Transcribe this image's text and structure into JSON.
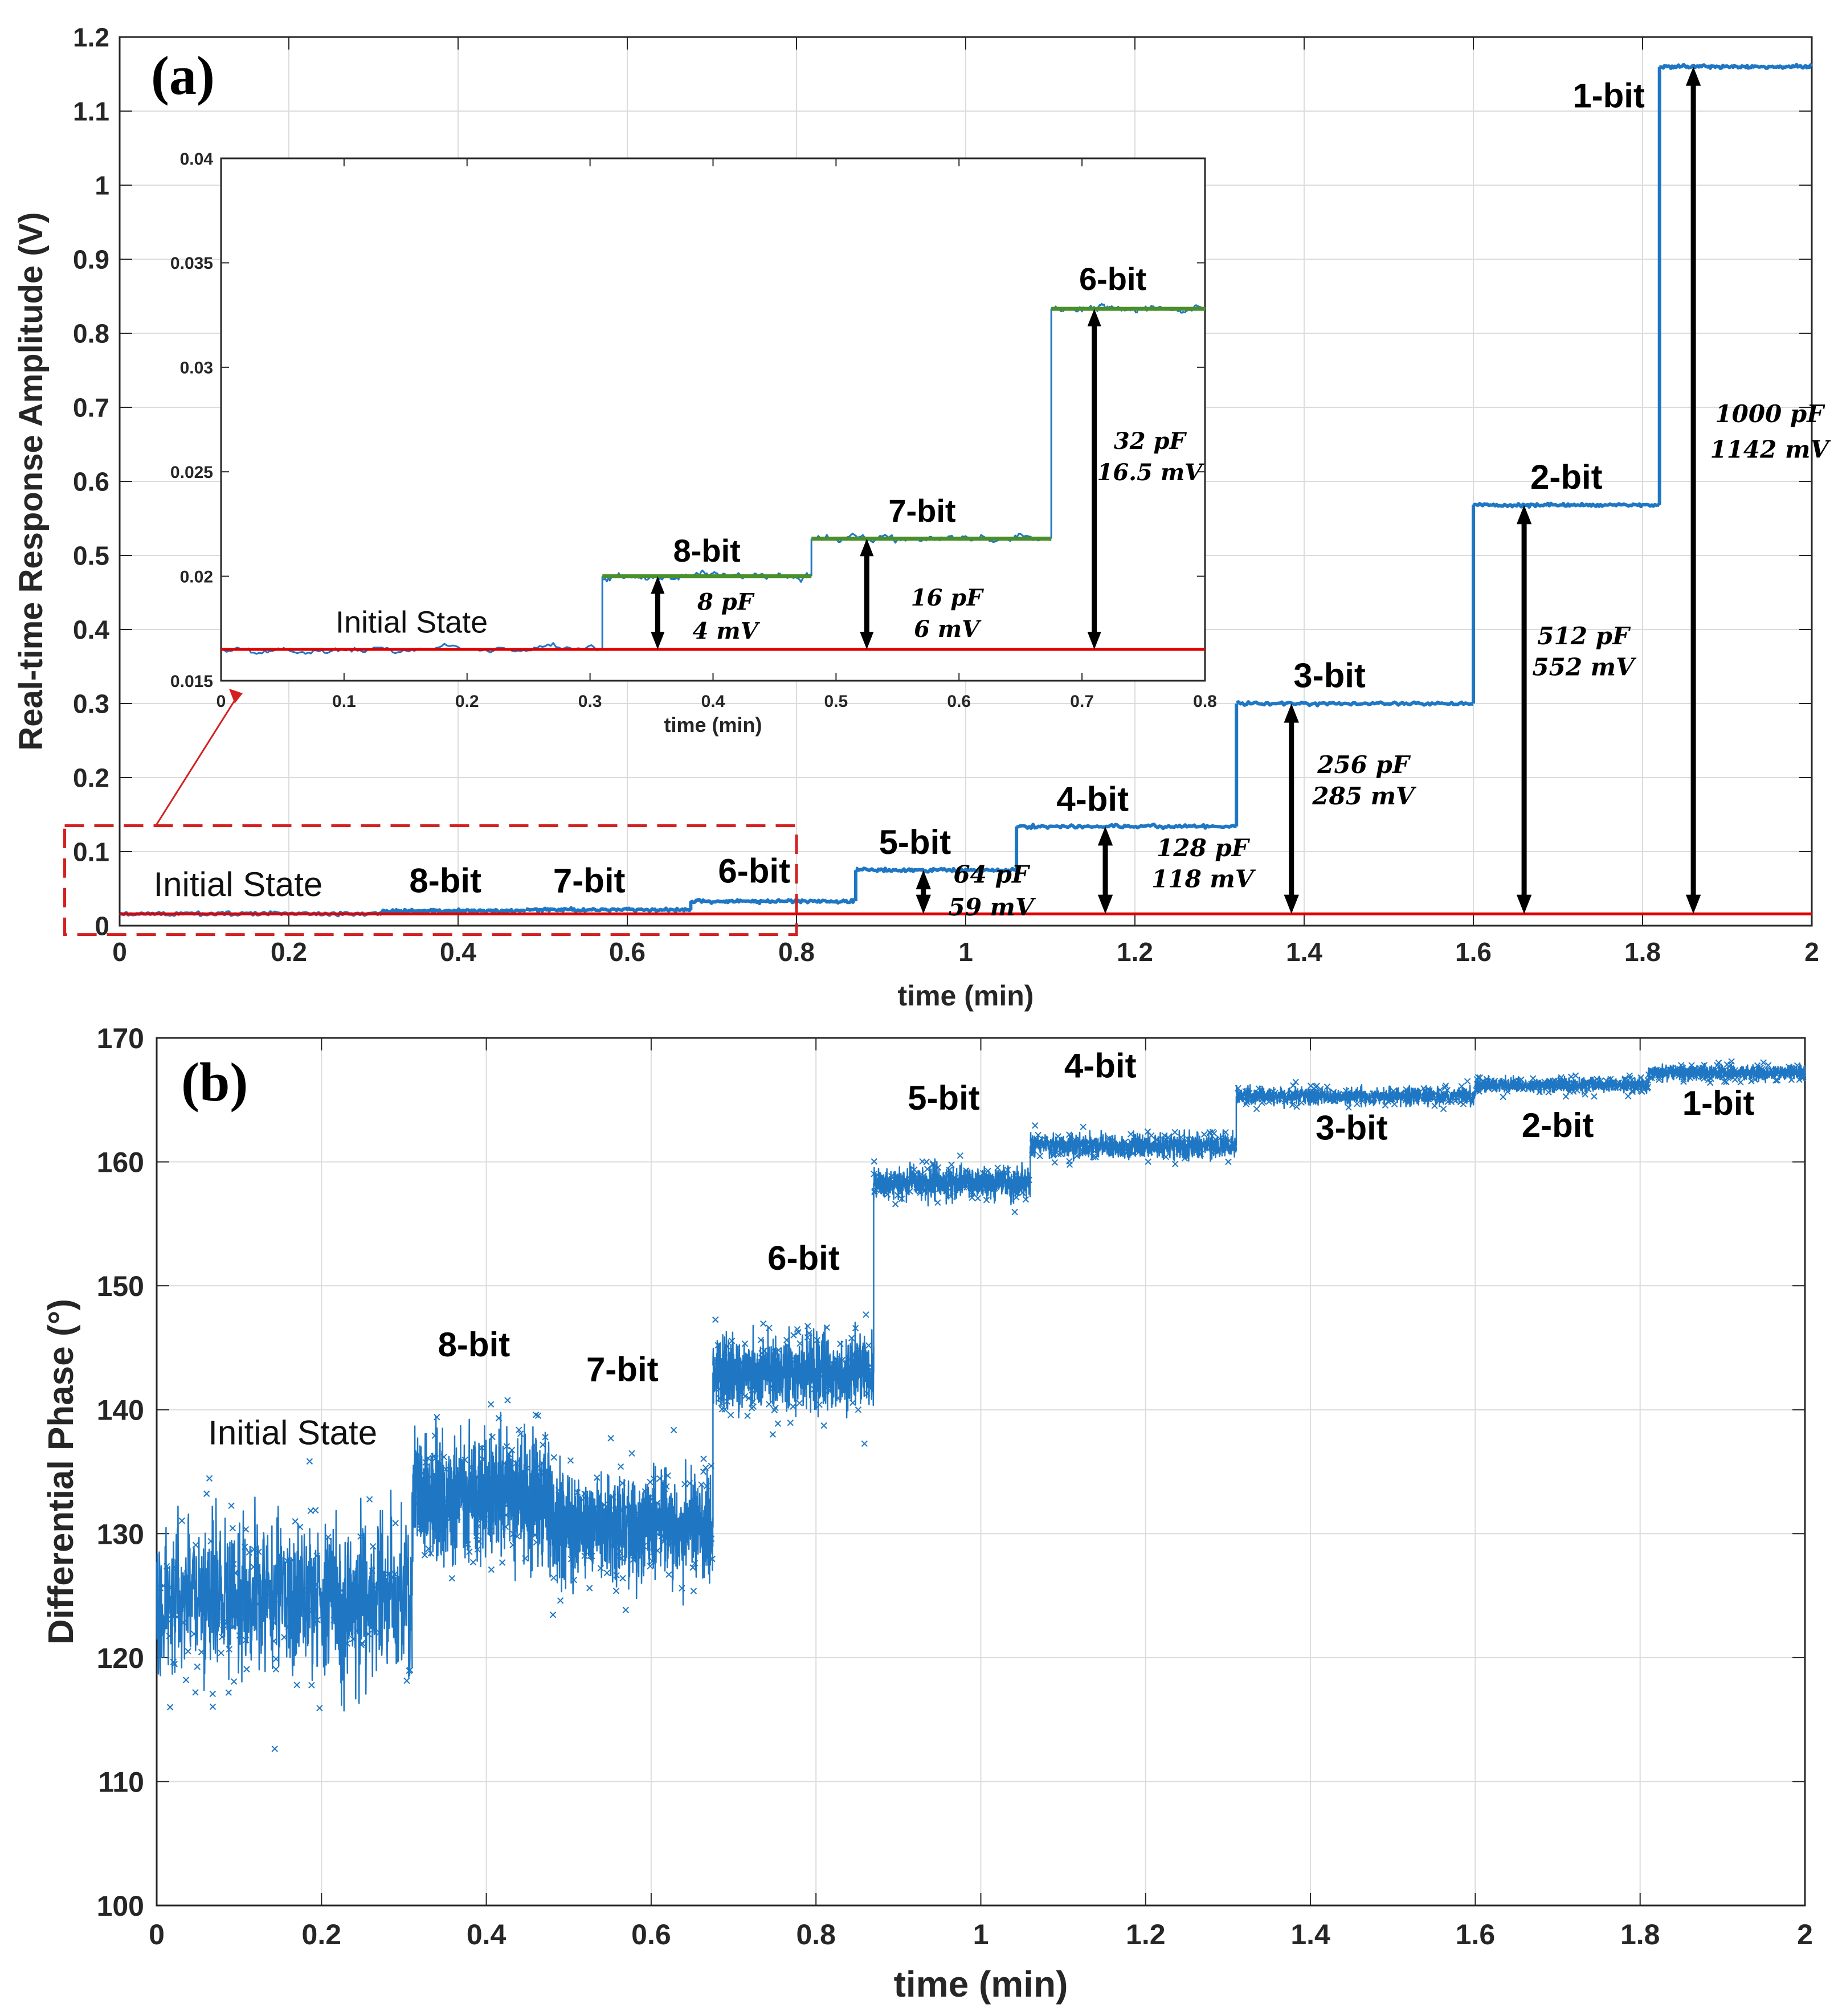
{
  "colors": {
    "trace": "#1f77c4",
    "ref_line": "#e00000",
    "fit_line": "#4a8f2a",
    "box": "#d42020",
    "grid": "#dcdcdc",
    "arrow": "#000000"
  },
  "chart_data": [
    {
      "id": "a",
      "type": "line",
      "panel_label": "(a)",
      "xlabel": "time (min)",
      "ylabel": "Real-time Response Amplitude (V)",
      "xlim": [
        0,
        2
      ],
      "ylim": [
        0,
        1.2
      ],
      "x_ticks": [
        0,
        0.2,
        0.4,
        0.6,
        0.8,
        1,
        1.2,
        1.4,
        1.6,
        1.8,
        2
      ],
      "y_ticks": [
        0,
        0.1,
        0.2,
        0.3,
        0.4,
        0.5,
        0.6,
        0.7,
        0.8,
        0.9,
        1,
        1.1,
        1.2
      ],
      "x_tick_labels": [
        "0",
        "0.2",
        "0.4",
        "0.6",
        "0.8",
        "1",
        "1.2",
        "1.4",
        "1.6",
        "1.8",
        "2"
      ],
      "y_tick_labels": [
        "0",
        "0.1",
        "0.2",
        "0.3",
        "0.4",
        "0.5",
        "0.6",
        "0.7",
        "0.8",
        "0.9",
        "1",
        "1.1",
        "1.2"
      ],
      "grid": true,
      "reference_level": 0.016,
      "series": [
        {
          "name": "amplitude",
          "steps": [
            {
              "state": "Initial State",
              "t_start": 0,
              "t_end": 0.31,
              "value": 0.016
            },
            {
              "state": "8-bit",
              "t_start": 0.31,
              "t_end": 0.48,
              "value": 0.02
            },
            {
              "state": "7-bit",
              "t_start": 0.48,
              "t_end": 0.675,
              "value": 0.0215
            },
            {
              "state": "6-bit",
              "t_start": 0.675,
              "t_end": 0.87,
              "value": 0.033
            },
            {
              "state": "5-bit",
              "t_start": 0.87,
              "t_end": 1.06,
              "value": 0.075
            },
            {
              "state": "4-bit",
              "t_start": 1.06,
              "t_end": 1.32,
              "value": 0.134
            },
            {
              "state": "3-bit",
              "t_start": 1.32,
              "t_end": 1.6,
              "value": 0.3
            },
            {
              "state": "2-bit",
              "t_start": 1.6,
              "t_end": 1.82,
              "value": 0.568
            },
            {
              "state": "1-bit",
              "t_start": 1.82,
              "t_end": 2.0,
              "value": 1.16
            }
          ]
        }
      ],
      "labels": [
        {
          "text": "Initial State",
          "x": 0.14,
          "y": 0.04,
          "style": "plain"
        },
        {
          "text": "8-bit",
          "x": 0.385,
          "y": 0.045
        },
        {
          "text": "7-bit",
          "x": 0.555,
          "y": 0.045
        },
        {
          "text": "6-bit",
          "x": 0.75,
          "y": 0.058
        },
        {
          "text": "5-bit",
          "x": 0.94,
          "y": 0.097
        },
        {
          "text": "4-bit",
          "x": 1.15,
          "y": 0.155
        },
        {
          "text": "3-bit",
          "x": 1.43,
          "y": 0.322
        },
        {
          "text": "2-bit",
          "x": 1.71,
          "y": 0.59
        },
        {
          "text": "1-bit",
          "x": 1.76,
          "y": 1.105
        }
      ],
      "arrows": [
        {
          "x": 0.95,
          "y_top": 0.075,
          "line1": "64 pF",
          "line2": "59 mV",
          "tx": 1.03,
          "ty1": 0.058,
          "ty2": 0.014
        },
        {
          "x": 1.165,
          "y_top": 0.134,
          "line1": "128 pF",
          "line2": "118 mV",
          "tx": 1.28,
          "ty1": 0.094,
          "ty2": 0.052
        },
        {
          "x": 1.385,
          "y_top": 0.3,
          "line1": "256 pF",
          "line2": "285 mV",
          "tx": 1.47,
          "ty1": 0.206,
          "ty2": 0.164
        },
        {
          "x": 1.66,
          "y_top": 0.568,
          "line1": "512 pF",
          "line2": "552 mV",
          "tx": 1.73,
          "ty1": 0.38,
          "ty2": 0.338
        },
        {
          "x": 1.86,
          "y_top": 1.16,
          "line1": "1000 pF",
          "line2": "1142 mV",
          "tx": 1.95,
          "ty1": 0.68,
          "ty2": 0.632
        }
      ],
      "zoom_box": {
        "x0": -0.065,
        "x1": 0.8,
        "y0": -0.012,
        "y1": 0.135
      }
    },
    {
      "id": "a-inset",
      "type": "line",
      "xlabel": "time (min)",
      "ylabel": "",
      "xlim": [
        0,
        0.8
      ],
      "ylim": [
        0.015,
        0.04
      ],
      "x_ticks": [
        0,
        0.1,
        0.2,
        0.3,
        0.4,
        0.5,
        0.6,
        0.7,
        0.8
      ],
      "y_ticks": [
        0.015,
        0.02,
        0.025,
        0.03,
        0.035,
        0.04
      ],
      "x_tick_labels": [
        "0",
        "0.1",
        "0.2",
        "0.3",
        "0.4",
        "0.5",
        "0.6",
        "0.7",
        "0.8"
      ],
      "y_tick_labels": [
        "0.015",
        "0.02",
        "0.025",
        "0.03",
        "0.035",
        "0.04"
      ],
      "grid": false,
      "reference_level": 0.0165,
      "series": [
        {
          "name": "amplitude (zoom)",
          "steps": [
            {
              "state": "Initial State",
              "t_start": 0,
              "t_end": 0.31,
              "value": 0.0165
            },
            {
              "state": "8-bit",
              "t_start": 0.31,
              "t_end": 0.48,
              "value": 0.02
            },
            {
              "state": "7-bit",
              "t_start": 0.48,
              "t_end": 0.675,
              "value": 0.0218
            },
            {
              "state": "6-bit",
              "t_start": 0.675,
              "t_end": 0.8,
              "value": 0.0328
            }
          ]
        }
      ],
      "labels": [
        {
          "text": "Initial State",
          "x": 0.155,
          "y": 0.0173,
          "style": "plain"
        },
        {
          "text": "8-bit",
          "x": 0.395,
          "y": 0.0207
        },
        {
          "text": "7-bit",
          "x": 0.57,
          "y": 0.0226
        },
        {
          "text": "6-bit",
          "x": 0.725,
          "y": 0.0337
        }
      ],
      "arrows": [
        {
          "x": 0.355,
          "y_top": 0.02,
          "line1": "8 pF",
          "line2": "4 mV",
          "tx": 0.41,
          "ty1": 0.0184,
          "ty2": 0.017
        },
        {
          "x": 0.525,
          "y_top": 0.0218,
          "line1": "16 pF",
          "line2": "6 mV",
          "tx": 0.59,
          "ty1": 0.0186,
          "ty2": 0.0171
        },
        {
          "x": 0.71,
          "y_top": 0.0328,
          "line1": "32 pF",
          "line2": "16.5 mV",
          "tx": 0.755,
          "ty1": 0.0261,
          "ty2": 0.0246
        }
      ]
    },
    {
      "id": "b",
      "type": "line",
      "panel_label": "(b)",
      "xlabel": "time (min)",
      "ylabel": "Differential Phase (°)",
      "xlim": [
        0,
        2
      ],
      "ylim": [
        100,
        170
      ],
      "x_ticks": [
        0,
        0.2,
        0.4,
        0.6,
        0.8,
        1,
        1.2,
        1.4,
        1.6,
        1.8,
        2
      ],
      "y_ticks": [
        100,
        110,
        120,
        130,
        140,
        150,
        160,
        170
      ],
      "x_tick_labels": [
        "0",
        "0.2",
        "0.4",
        "0.6",
        "0.8",
        "1",
        "1.2",
        "1.4",
        "1.6",
        "1.8",
        "2"
      ],
      "y_tick_labels": [
        "100",
        "110",
        "120",
        "130",
        "140",
        "150",
        "160",
        "170"
      ],
      "grid": true,
      "series": [
        {
          "name": "phase",
          "steps": [
            {
              "state": "Initial State",
              "t_start": 0,
              "t_end": 0.31,
              "value": 125,
              "noise": 4.5
            },
            {
              "state": "8-bit",
              "t_start": 0.31,
              "t_end": 0.48,
              "value": 133,
              "noise": 3.5
            },
            {
              "state": "7-bit",
              "t_start": 0.48,
              "t_end": 0.675,
              "value": 130.5,
              "noise": 3.0
            },
            {
              "state": "6-bit",
              "t_start": 0.675,
              "t_end": 0.87,
              "value": 143,
              "noise": 2.0
            },
            {
              "state": "5-bit",
              "t_start": 0.87,
              "t_end": 1.06,
              "value": 158.3,
              "noise": 0.9
            },
            {
              "state": "4-bit",
              "t_start": 1.06,
              "t_end": 1.31,
              "value": 161.3,
              "noise": 0.7
            },
            {
              "state": "3-bit",
              "t_start": 1.31,
              "t_end": 1.6,
              "value": 165.3,
              "noise": 0.5
            },
            {
              "state": "2-bit",
              "t_start": 1.6,
              "t_end": 1.81,
              "value": 166.2,
              "noise": 0.4
            },
            {
              "state": "1-bit",
              "t_start": 1.81,
              "t_end": 2.0,
              "value": 167.2,
              "noise": 0.4
            }
          ]
        }
      ],
      "labels": [
        {
          "text": "Initial State",
          "x": 0.165,
          "y": 137.2,
          "style": "plain"
        },
        {
          "text": "8-bit",
          "x": 0.385,
          "y": 144.3
        },
        {
          "text": "7-bit",
          "x": 0.565,
          "y": 142.3
        },
        {
          "text": "6-bit",
          "x": 0.785,
          "y": 151.3
        },
        {
          "text": "5-bit",
          "x": 0.955,
          "y": 164.2
        },
        {
          "text": "4-bit",
          "x": 1.145,
          "y": 166.8
        },
        {
          "text": "3-bit",
          "x": 1.45,
          "y": 161.8
        },
        {
          "text": "2-bit",
          "x": 1.7,
          "y": 162.0
        },
        {
          "text": "1-bit",
          "x": 1.895,
          "y": 163.8
        }
      ]
    }
  ]
}
